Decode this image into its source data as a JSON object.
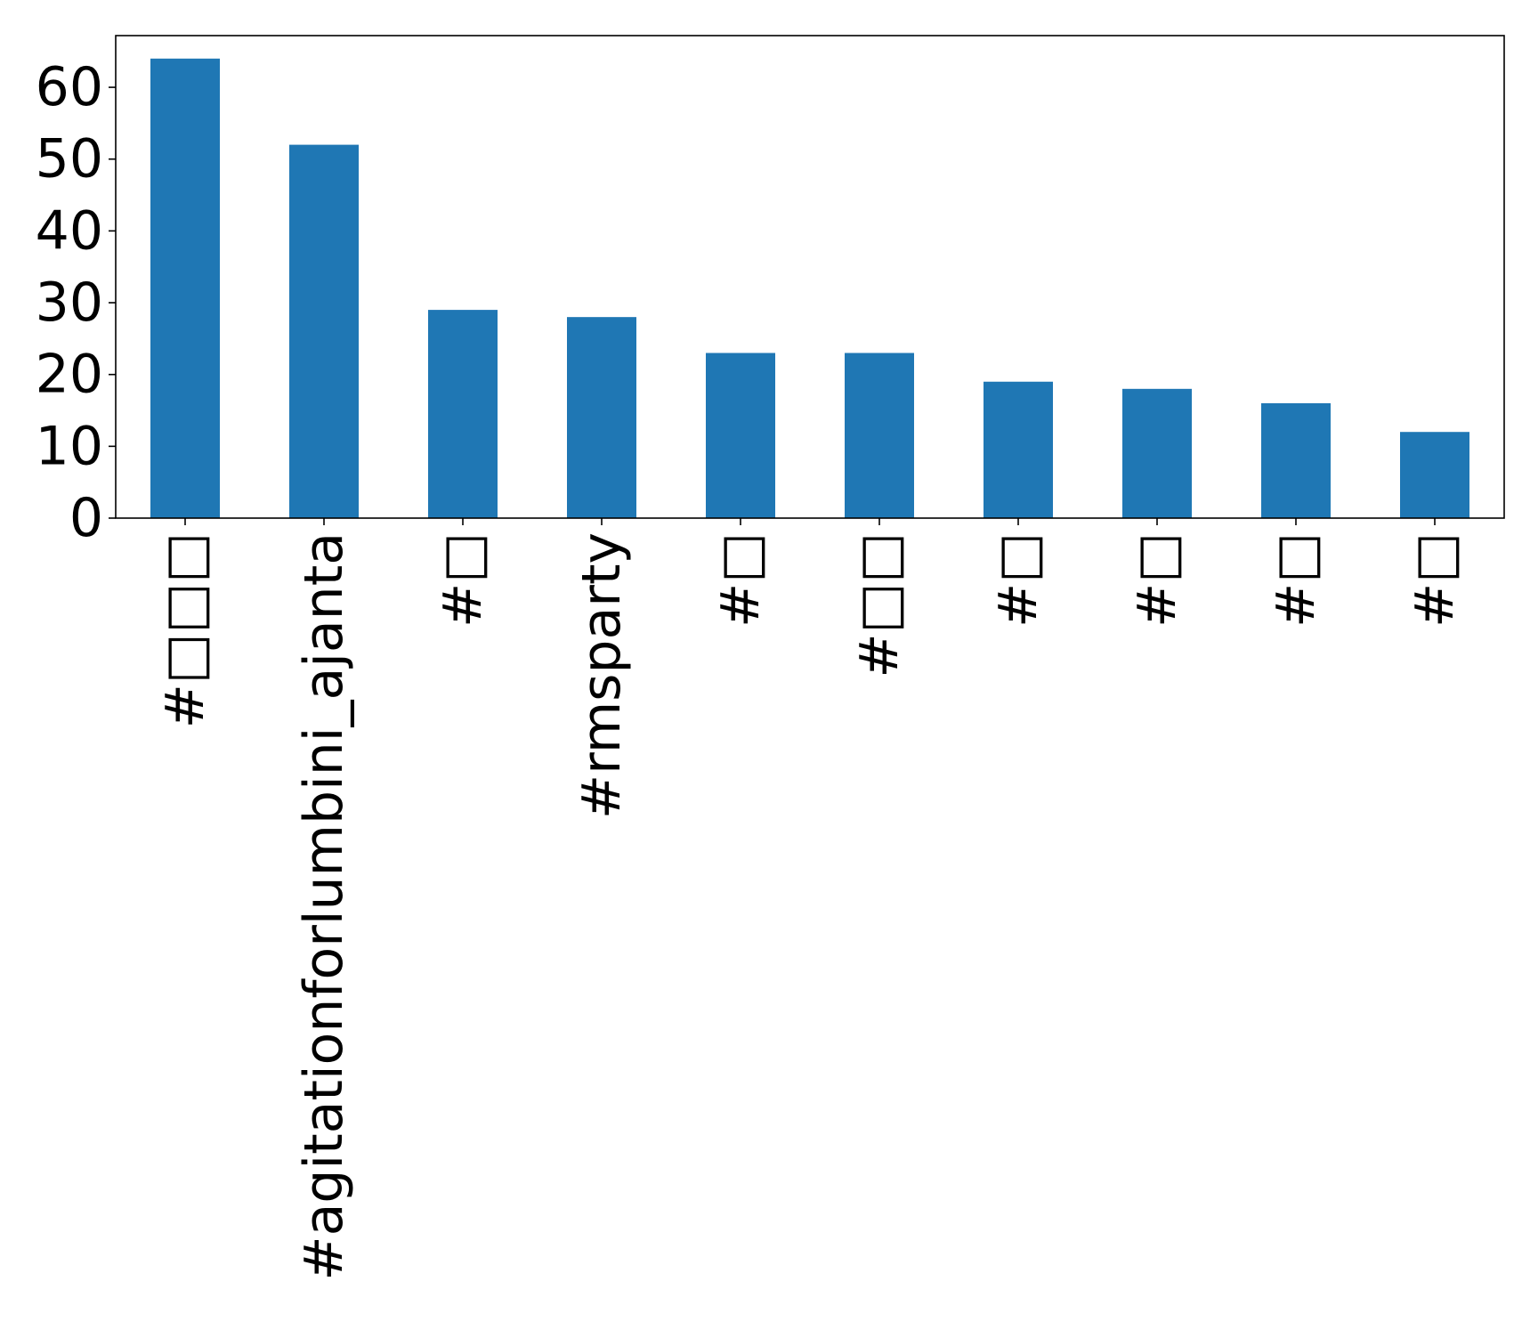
{
  "chart_data": {
    "type": "bar",
    "title": "",
    "xlabel": "",
    "ylabel": "",
    "categories": [
      "#□□□",
      "#agitationforlumbini_ajanta",
      "#□",
      "#rmsparty",
      "#□",
      "#□□",
      "#□",
      "#□",
      "#□",
      "#□"
    ],
    "values": [
      64,
      52,
      29,
      28,
      23,
      23,
      19,
      18,
      16,
      12
    ],
    "ylim": [
      0,
      67.2
    ],
    "yticks": [
      0,
      10,
      20,
      30,
      40,
      50,
      60
    ],
    "grid": false,
    "legend": false,
    "bar_color": "#1f77b4"
  }
}
